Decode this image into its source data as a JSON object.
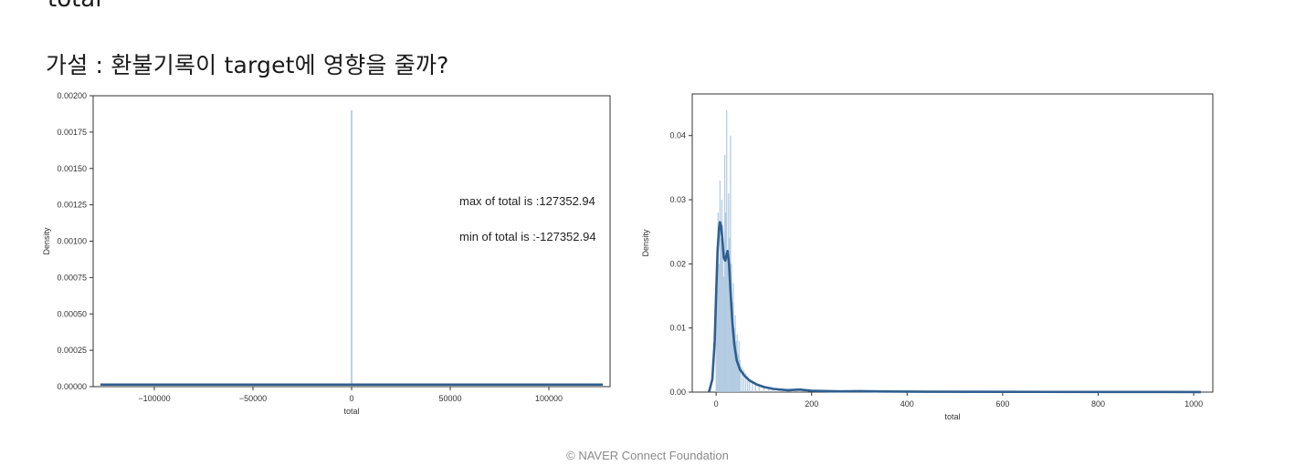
{
  "slide": {
    "top_cut_text": "total",
    "heading": "가설 : 환불기록이 target에 영향을 줄까?",
    "footer": "©  NAVER Connect Foundation"
  },
  "chart_data": [
    {
      "type": "area",
      "title": "",
      "xlabel": "total",
      "ylabel": "Density",
      "xlim": [
        -131000,
        131000
      ],
      "ylim": [
        0,
        0.002
      ],
      "x_ticks": [
        -100000,
        -50000,
        0,
        50000,
        100000
      ],
      "x_tick_labels": [
        "−100000",
        "−50000",
        "0",
        "50000",
        "100000"
      ],
      "y_ticks": [
        0,
        0.00025,
        0.0005,
        0.00075,
        0.001,
        0.00125,
        0.0015,
        0.00175,
        0.002
      ],
      "y_tick_labels": [
        "0.00000",
        "0.00025",
        "0.00050",
        "0.00075",
        "0.00100",
        "0.00125",
        "0.00150",
        "0.00175",
        "0.00200"
      ],
      "spike": {
        "x": 0,
        "y": 0.0019
      },
      "kde_baseline": {
        "x_range": [
          -127352.94,
          127352.94
        ],
        "y": 8e-06
      },
      "annotations": [
        "max of total is :127352.94",
        "min of total is :-127352.94"
      ]
    },
    {
      "type": "area",
      "title": "",
      "xlabel": "total",
      "ylabel": "Density",
      "xlim": [
        -50,
        1040
      ],
      "ylim": [
        0,
        0.0465
      ],
      "x_ticks": [
        0,
        200,
        400,
        600,
        800,
        1000
      ],
      "x_tick_labels": [
        "0",
        "200",
        "400",
        "600",
        "800",
        "1000"
      ],
      "y_ticks": [
        0,
        0.01,
        0.02,
        0.03,
        0.04
      ],
      "y_tick_labels": [
        "0.00",
        "0.01",
        "0.02",
        "0.03",
        "0.04"
      ],
      "histogram": [
        {
          "x": 0,
          "y": 0.012
        },
        {
          "x": 2,
          "y": 0.016
        },
        {
          "x": 4,
          "y": 0.028
        },
        {
          "x": 6,
          "y": 0.02
        },
        {
          "x": 8,
          "y": 0.033
        },
        {
          "x": 10,
          "y": 0.024
        },
        {
          "x": 12,
          "y": 0.03
        },
        {
          "x": 14,
          "y": 0.026
        },
        {
          "x": 16,
          "y": 0.018
        },
        {
          "x": 18,
          "y": 0.037
        },
        {
          "x": 20,
          "y": 0.028
        },
        {
          "x": 22,
          "y": 0.044
        },
        {
          "x": 24,
          "y": 0.022
        },
        {
          "x": 26,
          "y": 0.031
        },
        {
          "x": 28,
          "y": 0.024
        },
        {
          "x": 30,
          "y": 0.04
        },
        {
          "x": 32,
          "y": 0.02
        },
        {
          "x": 34,
          "y": 0.014
        },
        {
          "x": 36,
          "y": 0.017
        },
        {
          "x": 38,
          "y": 0.01
        },
        {
          "x": 40,
          "y": 0.012
        },
        {
          "x": 42,
          "y": 0.008
        },
        {
          "x": 44,
          "y": 0.009
        },
        {
          "x": 46,
          "y": 0.006
        },
        {
          "x": 48,
          "y": 0.008
        },
        {
          "x": 50,
          "y": 0.005
        },
        {
          "x": 54,
          "y": 0.004
        },
        {
          "x": 58,
          "y": 0.0035
        },
        {
          "x": 62,
          "y": 0.003
        },
        {
          "x": 66,
          "y": 0.0025
        },
        {
          "x": 70,
          "y": 0.002
        },
        {
          "x": 76,
          "y": 0.0018
        },
        {
          "x": 82,
          "y": 0.0014
        },
        {
          "x": 90,
          "y": 0.0012
        },
        {
          "x": 100,
          "y": 0.0009
        },
        {
          "x": 110,
          "y": 0.0007
        },
        {
          "x": 120,
          "y": 0.0006
        },
        {
          "x": 130,
          "y": 0.0005
        },
        {
          "x": 145,
          "y": 0.0004
        },
        {
          "x": 160,
          "y": 0.0003
        },
        {
          "x": 175,
          "y": 0.0006
        },
        {
          "x": 190,
          "y": 0.0002
        },
        {
          "x": 220,
          "y": 0.00015
        },
        {
          "x": 260,
          "y": 0.0001
        },
        {
          "x": 300,
          "y": 0.00012
        },
        {
          "x": 350,
          "y": 8e-05
        },
        {
          "x": 420,
          "y": 6e-05
        },
        {
          "x": 500,
          "y": 5e-05
        },
        {
          "x": 600,
          "y": 4e-05
        },
        {
          "x": 700,
          "y": 3e-05
        },
        {
          "x": 800,
          "y": 3e-05
        },
        {
          "x": 900,
          "y": 2e-05
        },
        {
          "x": 1000,
          "y": 2e-05
        }
      ],
      "kde": [
        {
          "x": -15,
          "y": 0
        },
        {
          "x": -8,
          "y": 0.002
        },
        {
          "x": -3,
          "y": 0.008
        },
        {
          "x": 0,
          "y": 0.015
        },
        {
          "x": 3,
          "y": 0.022
        },
        {
          "x": 6,
          "y": 0.0255
        },
        {
          "x": 8,
          "y": 0.0265
        },
        {
          "x": 10,
          "y": 0.026
        },
        {
          "x": 13,
          "y": 0.024
        },
        {
          "x": 16,
          "y": 0.021
        },
        {
          "x": 19,
          "y": 0.0205
        },
        {
          "x": 22,
          "y": 0.0215
        },
        {
          "x": 24,
          "y": 0.022
        },
        {
          "x": 27,
          "y": 0.02
        },
        {
          "x": 30,
          "y": 0.016
        },
        {
          "x": 34,
          "y": 0.011
        },
        {
          "x": 38,
          "y": 0.0075
        },
        {
          "x": 43,
          "y": 0.005
        },
        {
          "x": 50,
          "y": 0.0035
        },
        {
          "x": 60,
          "y": 0.0025
        },
        {
          "x": 70,
          "y": 0.0018
        },
        {
          "x": 85,
          "y": 0.0012
        },
        {
          "x": 100,
          "y": 0.0008
        },
        {
          "x": 120,
          "y": 0.0005
        },
        {
          "x": 150,
          "y": 0.0003
        },
        {
          "x": 175,
          "y": 0.0004
        },
        {
          "x": 200,
          "y": 0.0002
        },
        {
          "x": 260,
          "y": 0.00012
        },
        {
          "x": 300,
          "y": 0.00015
        },
        {
          "x": 350,
          "y": 0.0001
        },
        {
          "x": 450,
          "y": 6e-05
        },
        {
          "x": 600,
          "y": 4e-05
        },
        {
          "x": 800,
          "y": 3e-05
        },
        {
          "x": 1015,
          "y": 2e-05
        }
      ]
    }
  ],
  "colors": {
    "kde_line": "#2e5f8f",
    "hist_fill": "#a9c4dd",
    "spike": "#7da2c4",
    "axis": "#333333"
  }
}
